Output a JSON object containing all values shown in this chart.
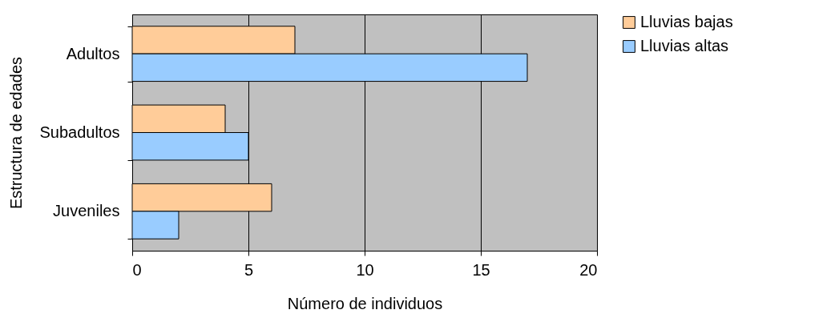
{
  "chart_data": {
    "type": "bar",
    "orientation": "horizontal",
    "xlabel": "Número de individuos",
    "ylabel": "Estructura de edades",
    "categories": [
      "Adultos",
      "Subadultos",
      "Juveniles"
    ],
    "series": [
      {
        "name": "Lluvias bajas",
        "color": "#ffcc99",
        "values": [
          7,
          4,
          6
        ]
      },
      {
        "name": "Lluvias altas",
        "color": "#99ccff",
        "values": [
          17,
          5,
          2
        ]
      }
    ],
    "xlim": [
      0,
      20
    ],
    "xticks": [
      0,
      5,
      10,
      15,
      20
    ],
    "grid": "x",
    "legend": "right"
  }
}
